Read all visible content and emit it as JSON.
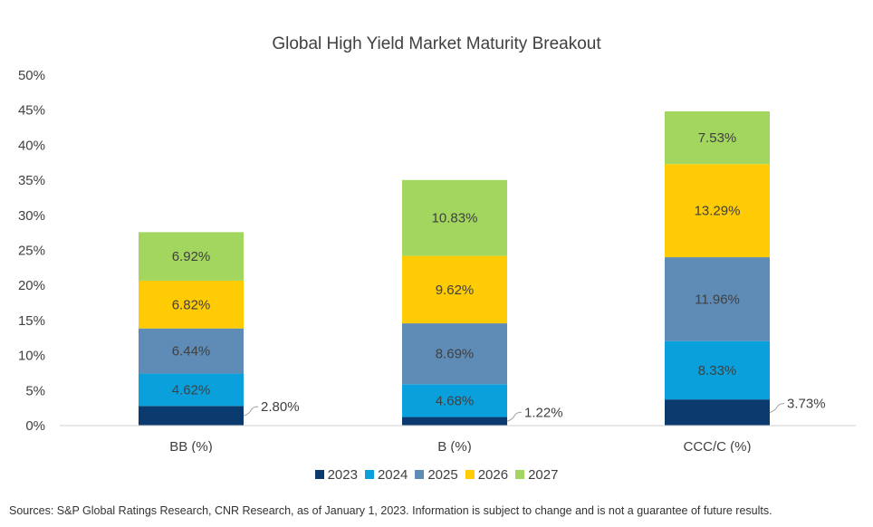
{
  "chart_data": {
    "type": "bar",
    "stacked": true,
    "title": "Global High Yield Market Maturity Breakout",
    "categories": [
      "BB (%)",
      "B (%)",
      "CCC/C (%)"
    ],
    "ylim": [
      0,
      50
    ],
    "yticks": [
      "0%",
      "5%",
      "10%",
      "15%",
      "20%",
      "25%",
      "30%",
      "35%",
      "40%",
      "45%",
      "50%"
    ],
    "ytick_values": [
      0,
      5,
      10,
      15,
      20,
      25,
      30,
      35,
      40,
      45,
      50
    ],
    "grid": false,
    "legend_position": "bottom",
    "series": [
      {
        "name": "2023",
        "color": "#0b3a6e",
        "values": [
          2.8,
          1.22,
          3.73
        ],
        "labels": [
          "2.80%",
          "1.22%",
          "3.73%"
        ],
        "label_outside": true
      },
      {
        "name": "2024",
        "color": "#0aa0dc",
        "values": [
          4.62,
          4.68,
          8.33
        ],
        "labels": [
          "4.62%",
          "4.68%",
          "8.33%"
        ]
      },
      {
        "name": "2025",
        "color": "#5f8bb7",
        "values": [
          6.44,
          8.69,
          11.96
        ],
        "labels": [
          "6.44%",
          "8.69%",
          "11.96%"
        ]
      },
      {
        "name": "2026",
        "color": "#ffcb05",
        "values": [
          6.82,
          9.62,
          13.29
        ],
        "labels": [
          "6.82%",
          "9.62%",
          "13.29%"
        ]
      },
      {
        "name": "2027",
        "color": "#a3d65f",
        "values": [
          6.92,
          10.83,
          7.53
        ],
        "labels": [
          "6.92%",
          "10.83%",
          "7.53%"
        ]
      }
    ]
  },
  "source_note": "Sources: S&P Global Ratings Research, CNR Research, as of January 1, 2023. Information is subject to change and is not a guarantee of future results."
}
